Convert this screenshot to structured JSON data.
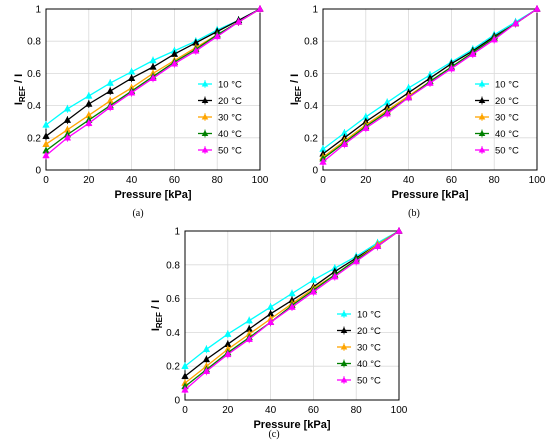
{
  "chart_data": [
    {
      "type": "line",
      "panel_label": "(a)",
      "xlabel": "Pressure [kPa]",
      "ylabel": {
        "main": "I",
        "sub": "REF",
        "tail": " / I"
      },
      "xlim": [
        0,
        100
      ],
      "ylim": [
        0,
        1
      ],
      "xticks": [
        "0",
        "20",
        "40",
        "60",
        "80",
        "100"
      ],
      "yticks": [
        "0",
        "0.2",
        "0.4",
        "0.6",
        "0.8",
        "1"
      ],
      "grid": true,
      "legend_position": "lower-right",
      "x": [
        0,
        10,
        20,
        30,
        40,
        50,
        60,
        70,
        80,
        90,
        100
      ],
      "series": [
        {
          "name": "10 °C",
          "color": "#00ffff",
          "marker": "triangle",
          "values": [
            0.28,
            0.38,
            0.46,
            0.54,
            0.61,
            0.68,
            0.74,
            0.8,
            0.87,
            0.93,
            1.0
          ]
        },
        {
          "name": "20 °C",
          "color": "#000000",
          "marker": "triangle",
          "values": [
            0.21,
            0.31,
            0.41,
            0.49,
            0.57,
            0.64,
            0.72,
            0.79,
            0.86,
            0.93,
            1.0
          ]
        },
        {
          "name": "30 °C",
          "color": "#ffa500",
          "marker": "triangle",
          "values": [
            0.16,
            0.25,
            0.34,
            0.43,
            0.51,
            0.6,
            0.68,
            0.76,
            0.84,
            0.92,
            1.0
          ]
        },
        {
          "name": "40 °C",
          "color": "#008000",
          "marker": "triangle",
          "values": [
            0.12,
            0.22,
            0.31,
            0.4,
            0.49,
            0.58,
            0.67,
            0.75,
            0.84,
            0.92,
            1.0
          ]
        },
        {
          "name": "50 °C",
          "color": "#ff00ff",
          "marker": "triangle",
          "values": [
            0.09,
            0.2,
            0.29,
            0.39,
            0.48,
            0.57,
            0.66,
            0.74,
            0.83,
            0.92,
            1.0
          ]
        }
      ]
    },
    {
      "type": "line",
      "panel_label": "(b)",
      "xlabel": "Pressure [kPa]",
      "ylabel": {
        "main": "I",
        "sub": "REF",
        "tail": " / I"
      },
      "xlim": [
        0,
        100
      ],
      "ylim": [
        0,
        1
      ],
      "xticks": [
        "0",
        "20",
        "40",
        "60",
        "80",
        "100"
      ],
      "yticks": [
        "0",
        "0.2",
        "0.4",
        "0.6",
        "0.8",
        "1"
      ],
      "grid": true,
      "legend_position": "lower-right",
      "x": [
        0,
        10,
        20,
        30,
        40,
        50,
        60,
        70,
        80,
        90,
        100
      ],
      "series": [
        {
          "name": "10 °C",
          "color": "#00ffff",
          "marker": "triangle",
          "values": [
            0.13,
            0.23,
            0.33,
            0.42,
            0.51,
            0.59,
            0.67,
            0.75,
            0.84,
            0.92,
            1.0
          ]
        },
        {
          "name": "20 °C",
          "color": "#000000",
          "marker": "triangle",
          "values": [
            0.1,
            0.2,
            0.3,
            0.39,
            0.48,
            0.57,
            0.66,
            0.74,
            0.83,
            0.91,
            1.0
          ]
        },
        {
          "name": "30 °C",
          "color": "#ffa500",
          "marker": "triangle",
          "values": [
            0.08,
            0.18,
            0.28,
            0.37,
            0.46,
            0.55,
            0.64,
            0.73,
            0.82,
            0.91,
            1.0
          ]
        },
        {
          "name": "40 °C",
          "color": "#008000",
          "marker": "triangle",
          "values": [
            0.07,
            0.17,
            0.27,
            0.36,
            0.45,
            0.55,
            0.64,
            0.73,
            0.82,
            0.91,
            1.0
          ]
        },
        {
          "name": "50 °C",
          "color": "#ff00ff",
          "marker": "triangle",
          "values": [
            0.05,
            0.16,
            0.26,
            0.35,
            0.45,
            0.54,
            0.63,
            0.72,
            0.81,
            0.91,
            1.0
          ]
        }
      ]
    },
    {
      "type": "line",
      "panel_label": "(c)",
      "xlabel": "Pressure [kPa]",
      "ylabel": {
        "main": "I",
        "sub": "REF",
        "tail": " / I"
      },
      "xlim": [
        0,
        100
      ],
      "ylim": [
        0,
        1
      ],
      "xticks": [
        "0",
        "20",
        "40",
        "60",
        "80",
        "100"
      ],
      "yticks": [
        "0",
        "0.2",
        "0.4",
        "0.6",
        "0.8",
        "1"
      ],
      "grid": true,
      "legend_position": "lower-right",
      "x": [
        0,
        10,
        20,
        30,
        40,
        50,
        60,
        70,
        80,
        90,
        100
      ],
      "series": [
        {
          "name": "10 °C",
          "color": "#00ffff",
          "marker": "triangle",
          "values": [
            0.2,
            0.3,
            0.39,
            0.47,
            0.55,
            0.63,
            0.71,
            0.78,
            0.85,
            0.93,
            1.0
          ]
        },
        {
          "name": "20 °C",
          "color": "#000000",
          "marker": "triangle",
          "values": [
            0.14,
            0.24,
            0.33,
            0.42,
            0.51,
            0.59,
            0.67,
            0.76,
            0.84,
            0.92,
            1.0
          ]
        },
        {
          "name": "30 °C",
          "color": "#ffa500",
          "marker": "triangle",
          "values": [
            0.1,
            0.2,
            0.3,
            0.39,
            0.48,
            0.57,
            0.66,
            0.74,
            0.83,
            0.92,
            1.0
          ]
        },
        {
          "name": "40 °C",
          "color": "#008000",
          "marker": "triangle",
          "values": [
            0.08,
            0.18,
            0.28,
            0.37,
            0.46,
            0.56,
            0.65,
            0.74,
            0.83,
            0.91,
            1.0
          ]
        },
        {
          "name": "50 °C",
          "color": "#ff00ff",
          "marker": "triangle",
          "values": [
            0.06,
            0.17,
            0.27,
            0.36,
            0.46,
            0.55,
            0.64,
            0.73,
            0.82,
            0.91,
            1.0
          ]
        }
      ]
    }
  ]
}
